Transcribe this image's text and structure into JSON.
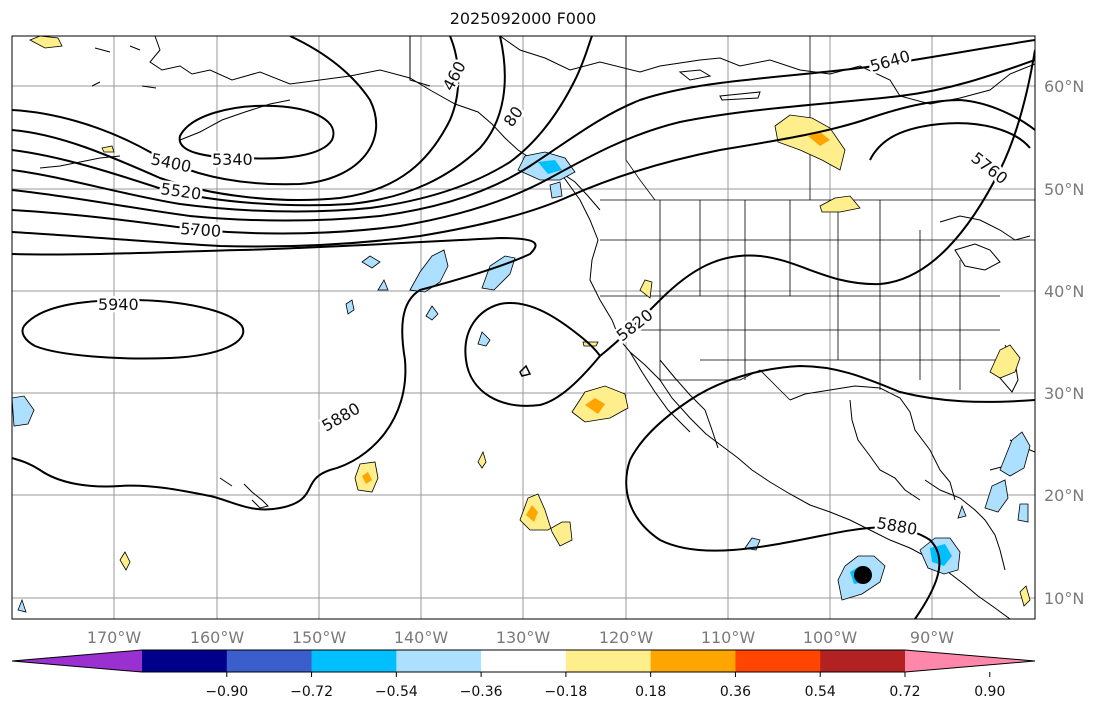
{
  "title": "2025092000 F000",
  "lat_labels": [
    "60°N",
    "50°N",
    "40°N",
    "30°N",
    "20°N",
    "10°N"
  ],
  "lon_labels": [
    "170°W",
    "160°W",
    "150°W",
    "140°W",
    "130°W",
    "120°W",
    "110°W",
    "100°W",
    "90°W"
  ],
  "contour_labels": [
    "5340",
    "5400",
    "5520",
    "5700",
    "5940",
    "5880",
    "5820",
    "5640",
    "5760",
    "5880",
    "460",
    "80"
  ],
  "colorbar": {
    "ticks": [
      "−0.90",
      "−0.72",
      "−0.54",
      "−0.36",
      "−0.18",
      "0.18",
      "0.36",
      "0.54",
      "0.72",
      "0.90"
    ],
    "colors": [
      "#9b30d0",
      "#00008b",
      "#3a5fcd",
      "#00bfff",
      "#addfff",
      "#ffffff",
      "#ffee8c",
      "#ffa500",
      "#ff4500",
      "#b22222",
      "#ff88aa"
    ]
  },
  "colors": {
    "positive_light": "#ffee8c",
    "positive_mid": "#ffa500",
    "negative_light": "#addfff",
    "negative_mid": "#00bfff",
    "marker": "#000000"
  }
}
